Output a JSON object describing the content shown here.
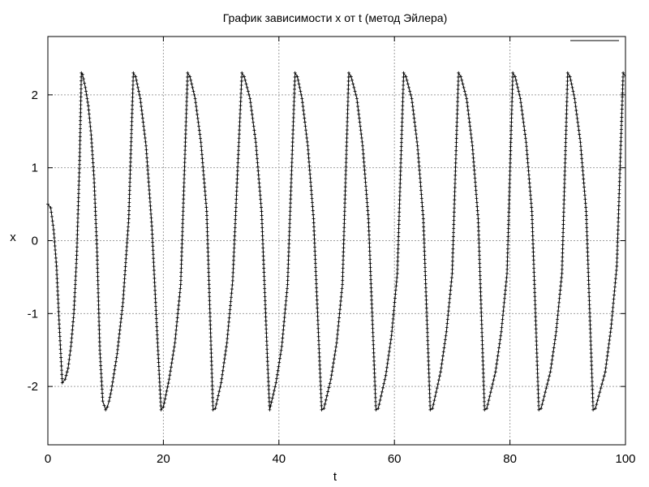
{
  "chart_data": {
    "type": "line",
    "title": "График зависимости x от t (метод Эйлера)",
    "xlabel": "t",
    "ylabel": "x",
    "xlim": [
      0,
      100
    ],
    "ylim": [
      -2.8,
      2.8
    ],
    "xticks": [
      0,
      20,
      40,
      60,
      80,
      100
    ],
    "yticks": [
      -2,
      -1,
      0,
      1,
      2
    ],
    "grid": true,
    "legend_position": "top-right",
    "series": [
      {
        "name": "",
        "color": "#000000",
        "marker": "plus",
        "x": [
          0,
          0.5,
          1.0,
          1.5,
          2.0,
          2.5,
          3.0,
          3.5,
          4.0,
          4.5,
          5.0,
          5.5,
          5.8,
          6.0,
          6.5,
          7.0,
          7.5,
          8.0,
          8.5,
          9.0,
          9.5,
          10.0,
          10.3,
          10.6,
          11.0,
          12.0,
          13.0,
          14.0,
          14.8,
          15.2,
          16.0,
          17.0,
          18.0,
          19.0,
          19.6,
          20.0,
          21.0,
          22.0,
          23.0,
          24.2,
          24.6,
          25.5,
          26.5,
          27.5,
          28.6,
          29.0,
          30.0,
          31.0,
          32.0,
          33.6,
          34.0,
          35.0,
          36.0,
          37.0,
          38.0,
          38.4,
          39.5,
          40.5,
          41.5,
          42.8,
          43.2,
          44.0,
          45.0,
          46.0,
          47.4,
          47.8,
          49.0,
          50.0,
          51.0,
          52.1,
          52.5,
          53.5,
          54.5,
          55.5,
          56.8,
          57.2,
          58.5,
          59.5,
          60.5,
          61.6,
          62.0,
          63.0,
          64.0,
          65.0,
          66.2,
          66.6,
          68.0,
          69.0,
          70.0,
          71.1,
          71.5,
          72.5,
          73.5,
          74.5,
          75.6,
          76.0,
          77.5,
          78.5,
          79.5,
          80.5,
          80.9,
          81.8,
          82.8,
          83.8,
          85.0,
          85.4,
          87.0,
          88.0,
          89.0,
          90.0,
          90.4,
          91.2,
          92.2,
          93.2,
          94.4,
          94.8,
          96.5,
          97.5,
          98.5,
          99.6,
          100.0
        ],
        "y": [
          0.5,
          0.45,
          0.15,
          -0.35,
          -1.2,
          -1.95,
          -1.9,
          -1.75,
          -1.45,
          -1.0,
          -0.2,
          1.1,
          2.3,
          2.28,
          2.1,
          1.85,
          1.45,
          0.85,
          -0.1,
          -1.5,
          -2.2,
          -2.32,
          -2.28,
          -2.2,
          -2.05,
          -1.55,
          -0.85,
          0.3,
          2.3,
          2.25,
          1.95,
          1.3,
          0.2,
          -1.4,
          -2.32,
          -2.28,
          -1.9,
          -1.4,
          -0.6,
          2.3,
          2.25,
          1.95,
          1.35,
          0.4,
          -2.32,
          -2.3,
          -1.95,
          -1.4,
          -0.55,
          2.3,
          2.25,
          1.95,
          1.35,
          0.4,
          -1.6,
          -2.32,
          -1.95,
          -1.45,
          -0.6,
          2.3,
          2.25,
          1.95,
          1.3,
          0.3,
          -2.32,
          -2.3,
          -1.9,
          -1.4,
          -0.6,
          2.3,
          2.25,
          1.95,
          1.3,
          0.3,
          -2.32,
          -2.3,
          -1.85,
          -1.3,
          -0.45,
          2.3,
          2.25,
          1.95,
          1.3,
          0.3,
          -2.32,
          -2.3,
          -1.8,
          -1.25,
          -0.45,
          2.3,
          2.25,
          1.95,
          1.3,
          0.3,
          -2.32,
          -2.3,
          -1.8,
          -1.25,
          -0.45,
          2.3,
          2.25,
          1.95,
          1.35,
          0.4,
          -2.32,
          -2.3,
          -1.8,
          -1.25,
          -0.45,
          2.3,
          2.25,
          1.95,
          1.35,
          0.4,
          -2.32,
          -2.3,
          -1.8,
          -1.2,
          -0.35,
          2.3,
          2.25
        ]
      }
    ]
  }
}
